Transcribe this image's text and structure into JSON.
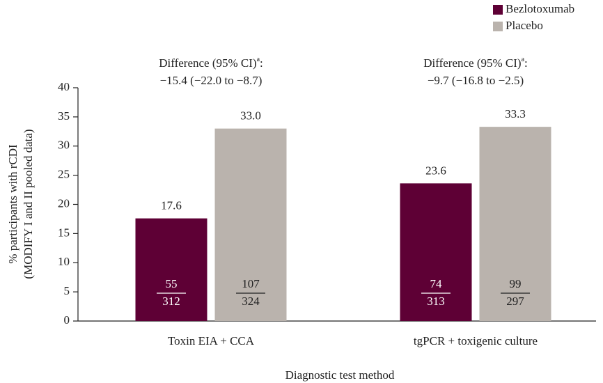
{
  "chart_data": {
    "type": "bar",
    "categories": [
      "Toxin EIA + CCA",
      "tgPCR + toxigenic culture"
    ],
    "series": [
      {
        "name": "Bezlotoxumab",
        "color": "#5e0035",
        "values": [
          17.6,
          23.6
        ],
        "value_labels": [
          "17.6",
          "23.6"
        ],
        "numerators": [
          55,
          74
        ],
        "denominators": [
          312,
          313
        ]
      },
      {
        "name": "Placebo",
        "color": "#bab3ad",
        "values": [
          33.0,
          33.3
        ],
        "value_labels": [
          "33.0",
          "33.3"
        ],
        "numerators": [
          107,
          99
        ],
        "denominators": [
          324,
          297
        ]
      }
    ],
    "annotations": [
      {
        "label": "Difference (95% CI)",
        "footnote": "a",
        "suffix": ":",
        "text": "−15.4 (−22.0 to −8.7)"
      },
      {
        "label": "Difference (95% CI)",
        "footnote": "a",
        "suffix": ":",
        "text": "−9.7 (−16.8 to −2.5)"
      }
    ],
    "y_label": [
      "% participants with rCDI",
      "(MODIFY I and II pooled data)"
    ],
    "x_label": "Diagnostic test method",
    "ylim": [
      0,
      40
    ],
    "yticks": [
      0,
      5,
      10,
      15,
      20,
      25,
      30,
      35,
      40
    ],
    "grid": false,
    "legend": "top-right"
  }
}
